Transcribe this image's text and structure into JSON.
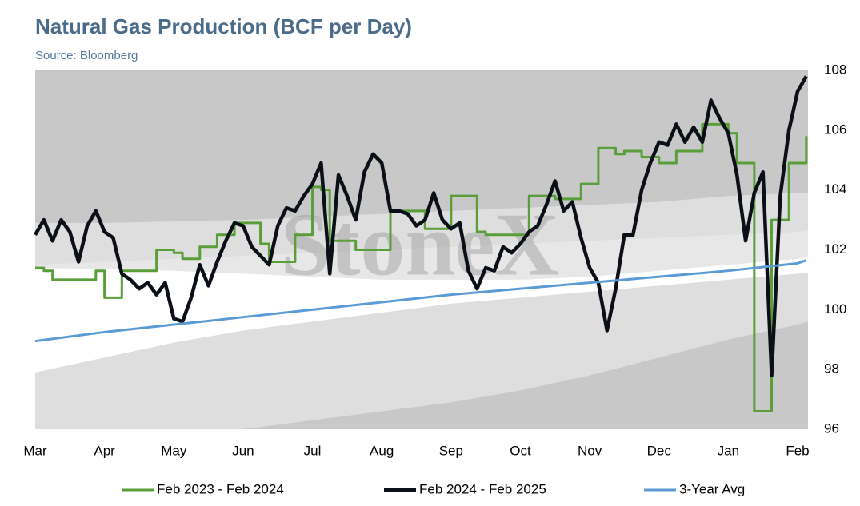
{
  "chart_data": {
    "type": "line",
    "title": "Natural Gas Production (BCF per Day)",
    "subtitle": "Source: Bloomberg",
    "watermark": "StoneX",
    "xlim": [
      0,
      11.15
    ],
    "xticks": [
      {
        "value": 0,
        "label": "Mar"
      },
      {
        "value": 1,
        "label": "Apr"
      },
      {
        "value": 2,
        "label": "May"
      },
      {
        "value": 3,
        "label": "Jun"
      },
      {
        "value": 4,
        "label": "Jul"
      },
      {
        "value": 5,
        "label": "Aug"
      },
      {
        "value": 6,
        "label": "Sep"
      },
      {
        "value": 7,
        "label": "Oct"
      },
      {
        "value": 8,
        "label": "Nov"
      },
      {
        "value": 9,
        "label": "Dec"
      },
      {
        "value": 10,
        "label": "Jan"
      },
      {
        "value": 11,
        "label": "Feb"
      }
    ],
    "ylim": [
      96,
      108
    ],
    "yticks": [
      96,
      98,
      100,
      102,
      104,
      106,
      108
    ],
    "x": [
      0,
      0.125,
      0.25,
      0.375,
      0.5,
      0.625,
      0.75,
      0.875,
      1,
      1.125,
      1.25,
      1.375,
      1.5,
      1.625,
      1.75,
      1.875,
      2,
      2.125,
      2.25,
      2.375,
      2.5,
      2.625,
      2.75,
      2.875,
      3,
      3.125,
      3.25,
      3.375,
      3.5,
      3.625,
      3.75,
      3.875,
      4,
      4.125,
      4.25,
      4.375,
      4.5,
      4.625,
      4.75,
      4.875,
      5,
      5.125,
      5.25,
      5.375,
      5.5,
      5.625,
      5.75,
      5.875,
      6,
      6.125,
      6.25,
      6.375,
      6.5,
      6.625,
      6.75,
      6.875,
      7,
      7.125,
      7.25,
      7.375,
      7.5,
      7.625,
      7.75,
      7.875,
      8,
      8.125,
      8.25,
      8.375,
      8.5,
      8.625,
      8.75,
      8.875,
      9,
      9.125,
      9.25,
      9.375,
      9.5,
      9.625,
      9.75,
      9.875,
      10,
      10.125,
      10.25,
      10.375,
      10.5,
      10.625,
      10.75,
      10.875,
      11,
      11.125
    ],
    "band_x": [
      0,
      1,
      2,
      3,
      4,
      5,
      6,
      7,
      8,
      9,
      10,
      11,
      11.15
    ],
    "bands": [
      {
        "color": "#dedede",
        "values": [
          102.9,
          102.9,
          102.95,
          103.0,
          103.1,
          103.2,
          103.3,
          103.4,
          103.5,
          103.6,
          103.8,
          103.9,
          103.9
        ]
      },
      {
        "color": "#e7e7e7",
        "values": [
          101.5,
          101.6,
          101.7,
          101.8,
          101.9,
          102.0,
          102.1,
          102.2,
          102.3,
          102.4,
          102.5,
          102.6,
          102.65
        ]
      },
      {
        "color": "#ffffff",
        "values": [
          101.4,
          101.35,
          101.3,
          101.2,
          101.1,
          101.0,
          101.0,
          101.0,
          101.1,
          101.3,
          101.5,
          101.7,
          101.75
        ]
      },
      {
        "color": "#dedede",
        "values": [
          97.9,
          98.4,
          98.9,
          99.3,
          99.6,
          99.9,
          100.2,
          100.4,
          100.6,
          100.8,
          101.0,
          101.2,
          101.25
        ]
      },
      {
        "color": "#c8c8c8",
        "values": [
          96,
          96,
          96,
          96,
          96.3,
          96.6,
          96.9,
          97.3,
          97.8,
          98.4,
          99.0,
          99.5,
          99.6
        ]
      }
    ],
    "background": "#c8c8c8",
    "series": [
      {
        "name": "Feb 2023 - Feb 2024",
        "color": "#5a9e3a",
        "width": 3,
        "step": true,
        "values": [
          101.4,
          101.3,
          101.0,
          101.0,
          101.0,
          101.0,
          101.0,
          101.3,
          100.4,
          100.4,
          101.3,
          101.3,
          101.3,
          101.3,
          102.0,
          102.0,
          101.9,
          101.7,
          101.7,
          102.1,
          102.1,
          102.5,
          102.5,
          102.9,
          102.9,
          102.9,
          102.2,
          101.6,
          101.6,
          101.6,
          102.5,
          102.5,
          104.1,
          104.0,
          102.3,
          102.3,
          102.3,
          102.0,
          102.0,
          102.0,
          102.0,
          103.3,
          103.3,
          103.3,
          103.3,
          102.7,
          102.7,
          102.7,
          103.8,
          103.8,
          103.8,
          102.6,
          102.5,
          102.5,
          102.5,
          102.5,
          102.5,
          103.8,
          103.8,
          103.8,
          103.7,
          103.7,
          103.7,
          104.2,
          104.2,
          105.4,
          105.4,
          105.2,
          105.3,
          105.3,
          105.1,
          105.1,
          104.9,
          104.9,
          105.3,
          105.3,
          105.3,
          106.2,
          106.2,
          106.2,
          105.9,
          104.9,
          104.9,
          96.6,
          96.6,
          103.0,
          103.0,
          104.9,
          104.9,
          105.8
        ]
      },
      {
        "name": "Feb 2024 - Feb 2025",
        "color": "#0b1018",
        "width": 4.5,
        "values": [
          102.5,
          103.0,
          102.3,
          103.0,
          102.6,
          101.6,
          102.8,
          103.3,
          102.6,
          102.4,
          101.2,
          101.0,
          100.7,
          100.9,
          100.5,
          100.9,
          99.7,
          99.6,
          100.4,
          101.5,
          100.8,
          101.6,
          102.3,
          102.9,
          102.8,
          102.1,
          101.8,
          101.5,
          102.8,
          103.4,
          103.3,
          103.8,
          104.2,
          104.9,
          101.2,
          104.5,
          103.8,
          103.0,
          104.6,
          105.2,
          104.9,
          103.3,
          103.3,
          103.2,
          102.8,
          103.0,
          103.9,
          103.0,
          102.7,
          102.9,
          101.3,
          100.7,
          101.4,
          101.3,
          102.1,
          101.9,
          102.2,
          102.6,
          102.8,
          103.5,
          104.3,
          103.3,
          103.6,
          102.4,
          101.4,
          100.9,
          99.3,
          100.7,
          102.5,
          102.5,
          104.0,
          104.9,
          105.6,
          105.5,
          106.2,
          105.6,
          106.1,
          105.6,
          107.0,
          106.4,
          105.9,
          104.5,
          102.3,
          103.9,
          104.6,
          97.8,
          103.8,
          106.0,
          107.3,
          107.8
        ]
      },
      {
        "name": "3-Year Avg",
        "color": "#5b9bd5",
        "width": 3,
        "x": [
          0,
          1,
          2,
          3,
          4,
          5,
          6,
          7,
          8,
          9,
          10,
          11,
          11.125
        ],
        "values": [
          98.95,
          99.25,
          99.5,
          99.75,
          100.0,
          100.25,
          100.5,
          100.7,
          100.9,
          101.1,
          101.3,
          101.55,
          101.65
        ]
      }
    ]
  }
}
